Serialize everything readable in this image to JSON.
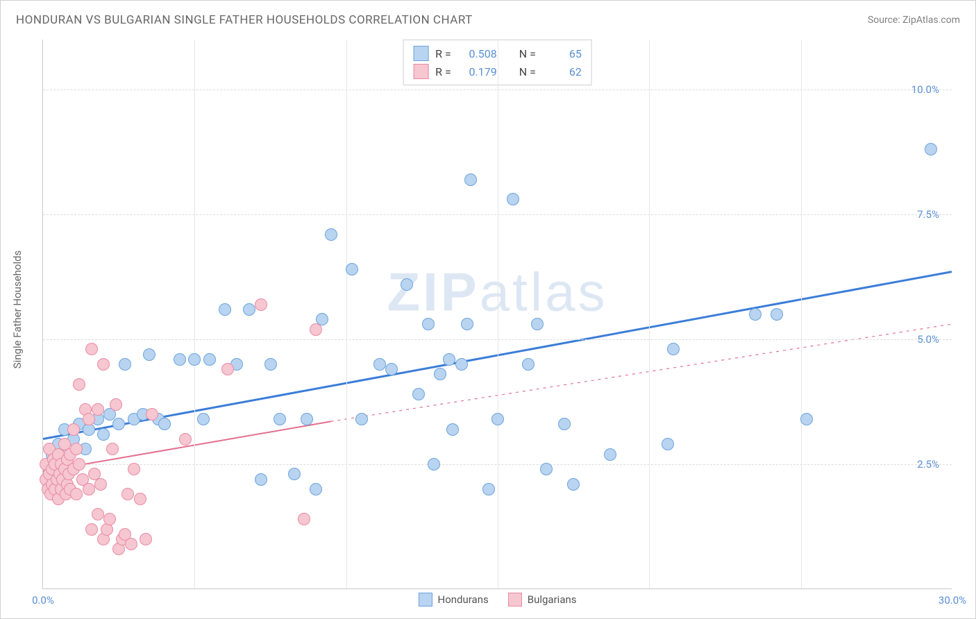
{
  "header": {
    "title": "HONDURAN VS BULGARIAN SINGLE FATHER HOUSEHOLDS CORRELATION CHART",
    "source": "Source: ZipAtlas.com"
  },
  "watermark": {
    "prefix": "ZIP",
    "suffix": "atlas"
  },
  "chart": {
    "type": "scatter",
    "y_axis_title": "Single Father Households",
    "xlim": [
      0,
      30
    ],
    "ylim": [
      0,
      11
    ],
    "x_ticks": [
      0,
      30
    ],
    "x_tick_labels": [
      "0.0%",
      "30.0%"
    ],
    "x_minor_ticks": [
      5,
      10,
      15,
      20,
      25
    ],
    "y_ticks": [
      2.5,
      5.0,
      7.5,
      10.0
    ],
    "y_tick_labels": [
      "2.5%",
      "5.0%",
      "7.5%",
      "10.0%"
    ],
    "grid_color": "#dcdcdc",
    "background_color": "#ffffff",
    "series": [
      {
        "name": "Hondurans",
        "fill": "#b9d4f0",
        "stroke": "#6aa2de",
        "line_color": "#3b7dd8",
        "line_width": 3,
        "dash": "none",
        "R": "0.508",
        "N": "65",
        "regression": {
          "x1": 0,
          "y1": 3.0,
          "x2": 30,
          "y2": 6.35
        },
        "points": [
          [
            0.2,
            2.4
          ],
          [
            0.3,
            2.7
          ],
          [
            0.4,
            2.3
          ],
          [
            0.5,
            2.9
          ],
          [
            0.6,
            2.6
          ],
          [
            0.7,
            3.2
          ],
          [
            0.8,
            2.7
          ],
          [
            1.0,
            3.0
          ],
          [
            1.2,
            3.3
          ],
          [
            1.4,
            2.8
          ],
          [
            1.5,
            3.2
          ],
          [
            1.8,
            3.4
          ],
          [
            2.0,
            3.1
          ],
          [
            2.2,
            3.5
          ],
          [
            2.5,
            3.3
          ],
          [
            2.7,
            4.5
          ],
          [
            3.0,
            3.4
          ],
          [
            3.3,
            3.5
          ],
          [
            3.5,
            4.7
          ],
          [
            3.8,
            3.4
          ],
          [
            4.0,
            3.3
          ],
          [
            4.5,
            4.6
          ],
          [
            5.0,
            4.6
          ],
          [
            5.3,
            3.4
          ],
          [
            5.5,
            4.6
          ],
          [
            6.0,
            5.6
          ],
          [
            6.4,
            4.5
          ],
          [
            6.8,
            5.6
          ],
          [
            7.2,
            2.2
          ],
          [
            7.5,
            4.5
          ],
          [
            7.8,
            3.4
          ],
          [
            8.3,
            2.3
          ],
          [
            8.7,
            3.4
          ],
          [
            9.0,
            2.0
          ],
          [
            9.2,
            5.4
          ],
          [
            9.5,
            7.1
          ],
          [
            10.2,
            6.4
          ],
          [
            10.5,
            3.4
          ],
          [
            11.1,
            4.5
          ],
          [
            11.5,
            4.4
          ],
          [
            12.0,
            6.1
          ],
          [
            12.4,
            3.9
          ],
          [
            12.7,
            5.3
          ],
          [
            12.9,
            2.5
          ],
          [
            13.1,
            4.3
          ],
          [
            13.4,
            4.6
          ],
          [
            13.5,
            3.2
          ],
          [
            13.8,
            4.5
          ],
          [
            14.0,
            5.3
          ],
          [
            14.1,
            8.2
          ],
          [
            14.7,
            2.0
          ],
          [
            15.0,
            3.4
          ],
          [
            15.5,
            7.8
          ],
          [
            16.0,
            4.5
          ],
          [
            16.3,
            5.3
          ],
          [
            16.6,
            2.4
          ],
          [
            17.2,
            3.3
          ],
          [
            17.5,
            2.1
          ],
          [
            18.7,
            2.7
          ],
          [
            20.6,
            2.9
          ],
          [
            20.8,
            4.8
          ],
          [
            23.5,
            5.5
          ],
          [
            24.2,
            5.5
          ],
          [
            25.2,
            3.4
          ],
          [
            29.3,
            8.8
          ]
        ]
      },
      {
        "name": "Bulgarians",
        "fill": "#f6c6d1",
        "stroke": "#e88aa2",
        "line_color": "#e36f8d",
        "line_width": 2,
        "dash": "none",
        "dash_extension": "4,6",
        "R": "0.179",
        "N": "62",
        "regression": {
          "x1": 0,
          "y1": 2.35,
          "x2": 9.5,
          "y2": 3.35
        },
        "regression_ext": {
          "x1": 9.5,
          "y1": 3.35,
          "x2": 30,
          "y2": 5.3
        },
        "points": [
          [
            0.1,
            2.2
          ],
          [
            0.1,
            2.5
          ],
          [
            0.15,
            2.0
          ],
          [
            0.2,
            2.3
          ],
          [
            0.2,
            2.8
          ],
          [
            0.25,
            1.9
          ],
          [
            0.3,
            2.4
          ],
          [
            0.3,
            2.1
          ],
          [
            0.35,
            2.6
          ],
          [
            0.4,
            2.0
          ],
          [
            0.4,
            2.5
          ],
          [
            0.45,
            2.2
          ],
          [
            0.5,
            2.7
          ],
          [
            0.5,
            1.8
          ],
          [
            0.55,
            2.3
          ],
          [
            0.6,
            2.5
          ],
          [
            0.6,
            2.0
          ],
          [
            0.65,
            2.2
          ],
          [
            0.7,
            2.9
          ],
          [
            0.7,
            2.4
          ],
          [
            0.75,
            1.9
          ],
          [
            0.8,
            2.6
          ],
          [
            0.8,
            2.1
          ],
          [
            0.85,
            2.3
          ],
          [
            0.9,
            2.7
          ],
          [
            0.9,
            2.0
          ],
          [
            1.0,
            3.2
          ],
          [
            1.0,
            2.4
          ],
          [
            1.1,
            2.8
          ],
          [
            1.1,
            1.9
          ],
          [
            1.2,
            2.5
          ],
          [
            1.2,
            4.1
          ],
          [
            1.3,
            2.2
          ],
          [
            1.4,
            3.6
          ],
          [
            1.5,
            2.0
          ],
          [
            1.5,
            3.4
          ],
          [
            1.6,
            1.2
          ],
          [
            1.6,
            4.8
          ],
          [
            1.7,
            2.3
          ],
          [
            1.8,
            1.5
          ],
          [
            1.8,
            3.6
          ],
          [
            1.9,
            2.1
          ],
          [
            2.0,
            4.5
          ],
          [
            2.0,
            1.0
          ],
          [
            2.1,
            1.2
          ],
          [
            2.2,
            1.4
          ],
          [
            2.3,
            2.8
          ],
          [
            2.4,
            3.7
          ],
          [
            2.5,
            0.8
          ],
          [
            2.6,
            1.0
          ],
          [
            2.7,
            1.1
          ],
          [
            2.8,
            1.9
          ],
          [
            2.9,
            0.9
          ],
          [
            3.0,
            2.4
          ],
          [
            3.2,
            1.8
          ],
          [
            3.4,
            1.0
          ],
          [
            3.6,
            3.5
          ],
          [
            4.7,
            3.0
          ],
          [
            6.1,
            4.4
          ],
          [
            7.2,
            5.7
          ],
          [
            8.6,
            1.4
          ],
          [
            9.0,
            5.2
          ]
        ]
      }
    ],
    "legend_bottom": [
      {
        "label": "Hondurans",
        "fill": "#b9d4f0",
        "stroke": "#6aa2de"
      },
      {
        "label": "Bulgarians",
        "fill": "#f6c6d1",
        "stroke": "#e88aa2"
      }
    ]
  }
}
